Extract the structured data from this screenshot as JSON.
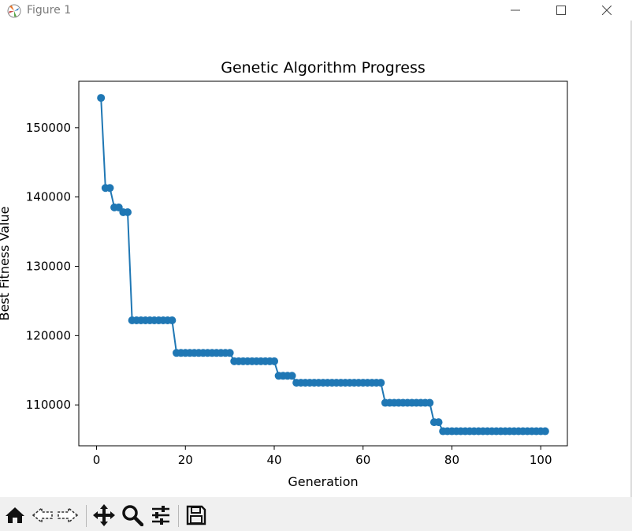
{
  "window": {
    "title": "Figure 1",
    "controls": {
      "minimize": "minimize",
      "maximize": "maximize",
      "close": "close"
    }
  },
  "toolbar": {
    "items": [
      {
        "name": "home",
        "icon": "home-icon"
      },
      {
        "name": "back",
        "icon": "back-arrow-icon"
      },
      {
        "name": "forward",
        "icon": "forward-arrow-icon"
      },
      {
        "name": "pan",
        "icon": "move-icon"
      },
      {
        "name": "zoom",
        "icon": "zoom-icon"
      },
      {
        "name": "configure-subplots",
        "icon": "sliders-icon"
      },
      {
        "name": "save",
        "icon": "save-icon"
      }
    ]
  },
  "colors": {
    "series": "#1f77b4",
    "toolbar_bg": "#f0f0f0",
    "title_text": "#7a7a7a"
  },
  "chart_data": {
    "type": "line",
    "title": "Genetic Algorithm Progress",
    "xlabel": "Generation",
    "ylabel": "Best Fitness Value",
    "xlim": [
      -4,
      106
    ],
    "ylim": [
      104100,
      156700
    ],
    "xticks": [
      0,
      20,
      40,
      60,
      80,
      100
    ],
    "yticks": [
      110000,
      120000,
      130000,
      140000,
      150000
    ],
    "marker": "circle",
    "grid": false,
    "legend": null,
    "series": [
      {
        "x": [
          1,
          2,
          3,
          4,
          5,
          6,
          7,
          8,
          9,
          10,
          11,
          12,
          13,
          14,
          15,
          16,
          17,
          18,
          19,
          20,
          21,
          22,
          23,
          24,
          25,
          26,
          27,
          28,
          29,
          30,
          31,
          32,
          33,
          34,
          35,
          36,
          37,
          38,
          39,
          40,
          41,
          42,
          43,
          44,
          45,
          46,
          47,
          48,
          49,
          50,
          51,
          52,
          53,
          54,
          55,
          56,
          57,
          58,
          59,
          60,
          61,
          62,
          63,
          64,
          65,
          66,
          67,
          68,
          69,
          70,
          71,
          72,
          73,
          74,
          75,
          76,
          77,
          78,
          79,
          80,
          81,
          82,
          83,
          84,
          85,
          86,
          87,
          88,
          89,
          90,
          91,
          92,
          93,
          94,
          95,
          96,
          97,
          98,
          99,
          100,
          101
        ],
        "y": [
          154300,
          141300,
          141300,
          138500,
          138500,
          137800,
          137800,
          122200,
          122200,
          122200,
          122200,
          122200,
          122200,
          122200,
          122200,
          122200,
          122200,
          117500,
          117500,
          117500,
          117500,
          117500,
          117500,
          117500,
          117500,
          117500,
          117500,
          117500,
          117500,
          117500,
          116300,
          116300,
          116300,
          116300,
          116300,
          116300,
          116300,
          116300,
          116300,
          116300,
          114200,
          114200,
          114200,
          114200,
          113200,
          113200,
          113200,
          113200,
          113200,
          113200,
          113200,
          113200,
          113200,
          113200,
          113200,
          113200,
          113200,
          113200,
          113200,
          113200,
          113200,
          113200,
          113200,
          113200,
          110300,
          110300,
          110300,
          110300,
          110300,
          110300,
          110300,
          110300,
          110300,
          110300,
          110300,
          107500,
          107500,
          106200,
          106200,
          106200,
          106200,
          106200,
          106200,
          106200,
          106200,
          106200,
          106200,
          106200,
          106200,
          106200,
          106200,
          106200,
          106200,
          106200,
          106200,
          106200,
          106200,
          106200,
          106200,
          106200,
          106200
        ]
      }
    ]
  }
}
